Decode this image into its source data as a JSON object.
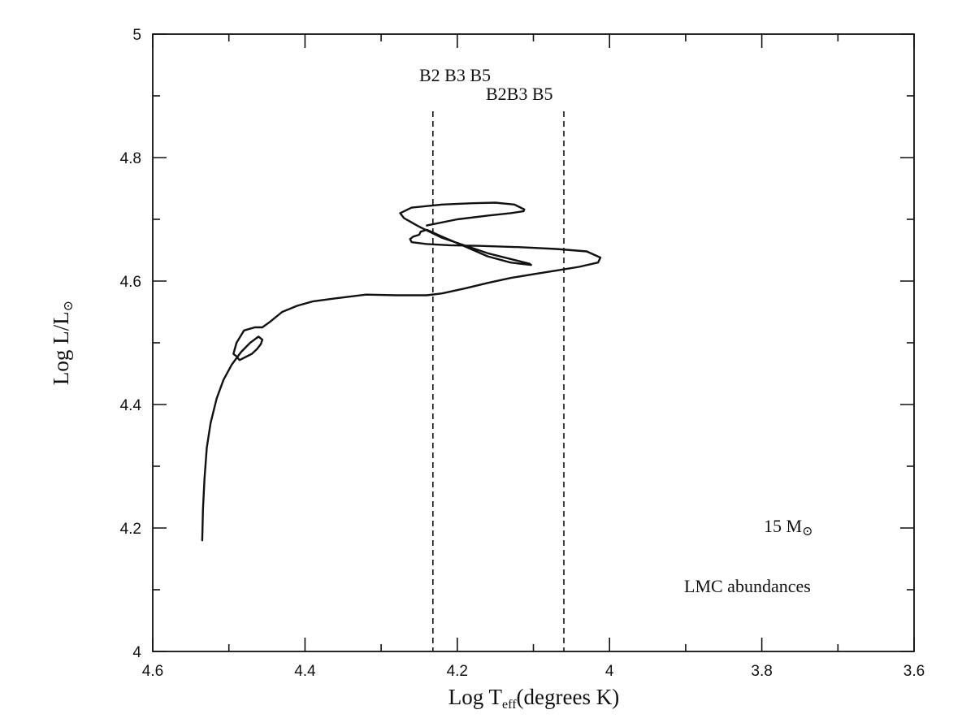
{
  "chart_data": {
    "type": "line",
    "xlabel": "Log T",
    "xlabel_subscript": "eff",
    "xlabel_suffix": "(degrees K)",
    "ylabel": "Log L/L",
    "ylabel_subscript": "⊙",
    "xlim": [
      4.6,
      3.6
    ],
    "ylim": [
      4.0,
      5.0
    ],
    "x_reversed": true,
    "grid": false,
    "x_ticks": [
      "4.6",
      "4.4",
      "4.2",
      "4",
      "3.8",
      "3.6"
    ],
    "y_ticks": [
      "4",
      "4.2",
      "4.4",
      "4.6",
      "4.8",
      "5"
    ],
    "annotations": {
      "mass_number": "15 M",
      "mass_symbol": "⊙",
      "abundances": "LMC abundances"
    },
    "boundaries": [
      {
        "x": 4.232,
        "y_top": 4.875,
        "y_bottom": 4.0,
        "labels": "B2  B3  B5"
      },
      {
        "x": 4.06,
        "y_top": 4.875,
        "y_bottom": 4.0,
        "labels": "B2B3 B5"
      }
    ],
    "series": [
      {
        "x": [
          4.535,
          4.534,
          4.532,
          4.529,
          4.524,
          4.516,
          4.507,
          4.496,
          4.484,
          4.472,
          4.461,
          4.456,
          4.458,
          4.463,
          4.47,
          4.478,
          4.486,
          4.49,
          4.494,
          4.49,
          4.48,
          4.466,
          4.456,
          4.446,
          4.43,
          4.41,
          4.39,
          4.36,
          4.32,
          4.28,
          4.24,
          4.22,
          4.19,
          4.16,
          4.13,
          4.1,
          4.07,
          4.04,
          4.015,
          4.012,
          4.03,
          4.07,
          4.12,
          4.17,
          4.21,
          4.24,
          4.26,
          4.262,
          4.258,
          4.25,
          4.248,
          4.24,
          4.22,
          4.19,
          4.16,
          4.13,
          4.103,
          4.105,
          4.16,
          4.22,
          4.25,
          4.27,
          4.275,
          4.26,
          4.22,
          4.18,
          4.15,
          4.125,
          4.112,
          4.113,
          4.13,
          4.16,
          4.2,
          4.24
        ],
        "y": [
          4.18,
          4.23,
          4.28,
          4.33,
          4.37,
          4.41,
          4.44,
          4.465,
          4.485,
          4.5,
          4.51,
          4.505,
          4.498,
          4.49,
          4.482,
          4.477,
          4.472,
          4.478,
          4.482,
          4.5,
          4.52,
          4.525,
          4.525,
          4.534,
          4.55,
          4.56,
          4.567,
          4.572,
          4.578,
          4.577,
          4.577,
          4.58,
          4.588,
          4.597,
          4.605,
          4.611,
          4.617,
          4.623,
          4.63,
          4.638,
          4.648,
          4.652,
          4.655,
          4.657,
          4.658,
          4.66,
          4.663,
          4.668,
          4.672,
          4.675,
          4.68,
          4.683,
          4.672,
          4.656,
          4.64,
          4.63,
          4.626,
          4.628,
          4.645,
          4.67,
          4.688,
          4.702,
          4.71,
          4.719,
          4.724,
          4.726,
          4.727,
          4.724,
          4.716,
          4.713,
          4.71,
          4.706,
          4.7,
          4.69
        ]
      }
    ]
  }
}
